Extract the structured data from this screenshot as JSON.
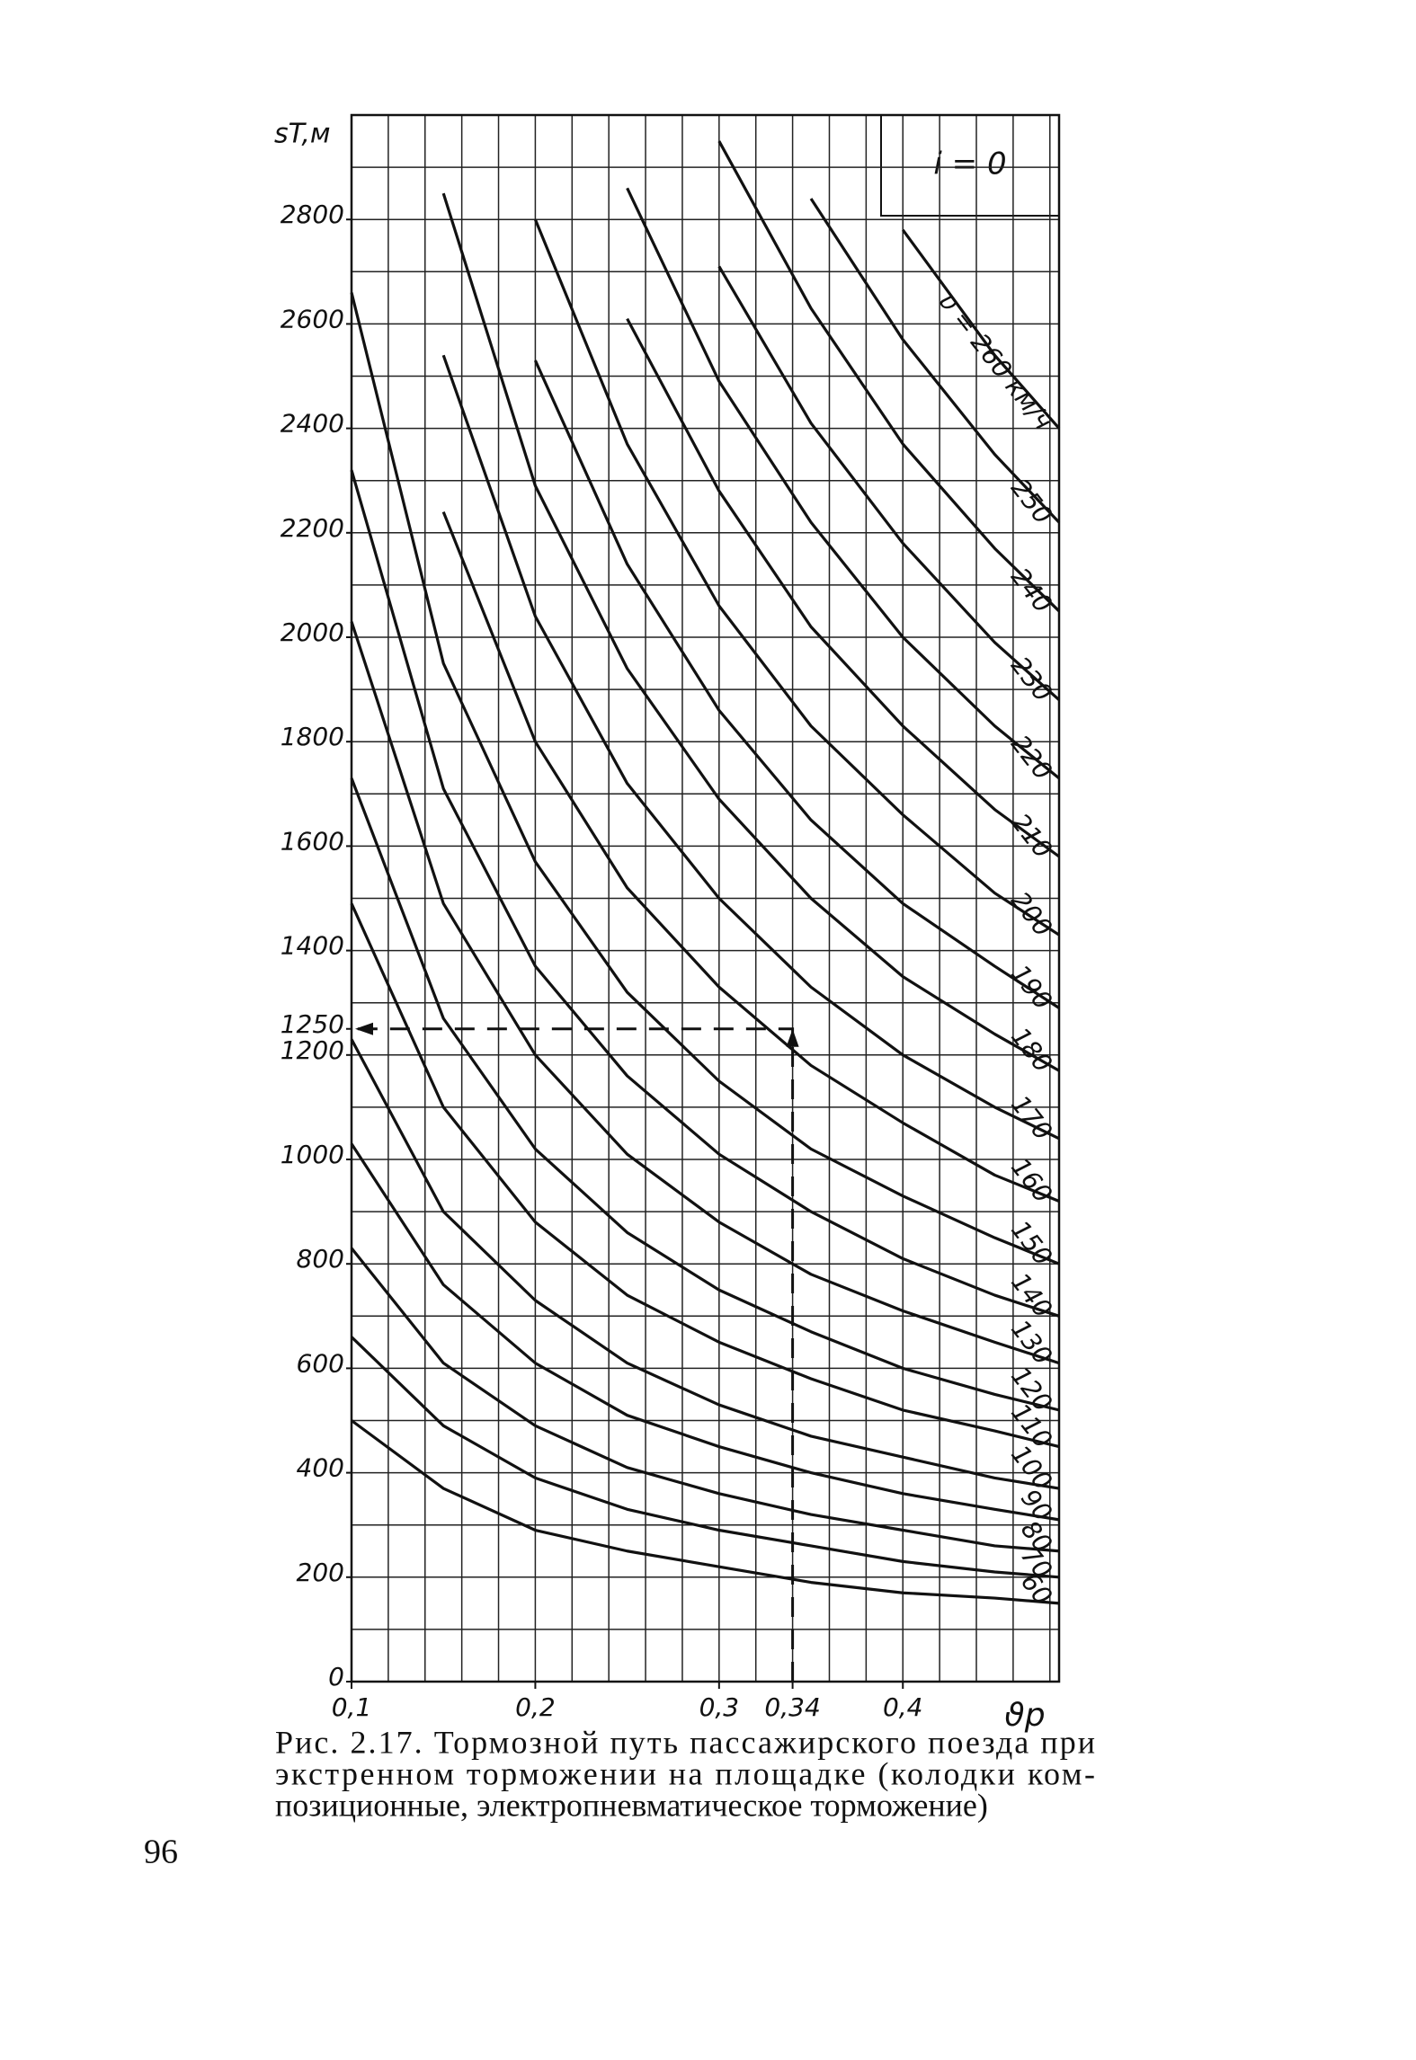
{
  "chart_data": {
    "type": "line",
    "y_label": "sT,м",
    "x_label": "ϑp",
    "annotation": "i = 0",
    "caption": [
      "Рис. 2.17. Тормозной путь пассажирского поезда при",
      "экстренном торможении на площадке (колодки ком-",
      "позиционные, электропневматическое торможение)"
    ],
    "page_number": "96",
    "x": [
      0.1,
      0.15,
      0.2,
      0.25,
      0.3,
      0.35,
      0.4,
      0.45,
      0.485
    ],
    "xlim": [
      0.1,
      0.485
    ],
    "ylim": [
      0,
      3000
    ],
    "xticks": [
      {
        "value": 0.1,
        "label": "0,1"
      },
      {
        "value": 0.2,
        "label": "0,2"
      },
      {
        "value": 0.3,
        "label": "0,3"
      },
      {
        "value": 0.34,
        "label": "0,34"
      },
      {
        "value": 0.4,
        "label": "0,4"
      }
    ],
    "yticks": [
      0,
      200,
      400,
      600,
      800,
      1000,
      1200,
      1250,
      1400,
      1600,
      1800,
      2000,
      2200,
      2400,
      2600,
      2800
    ],
    "xgrid": [
      0.12,
      0.14,
      0.16,
      0.18,
      0.2,
      0.22,
      0.24,
      0.26,
      0.28,
      0.3,
      0.32,
      0.34,
      0.36,
      0.38,
      0.4,
      0.42,
      0.44,
      0.46,
      0.48
    ],
    "ygrid": [
      100,
      200,
      300,
      400,
      500,
      600,
      700,
      800,
      900,
      1000,
      1100,
      1200,
      1300,
      1400,
      1500,
      1600,
      1700,
      1800,
      1900,
      2000,
      2100,
      2200,
      2300,
      2400,
      2500,
      2600,
      2700,
      2800,
      2900
    ],
    "guide": {
      "x": 0.34,
      "y": 1250
    },
    "color": "#111111",
    "series": [
      {
        "name": "60",
        "values": [
          500,
          370,
          290,
          250,
          220,
          190,
          170,
          160,
          150
        ]
      },
      {
        "name": "70",
        "values": [
          660,
          490,
          390,
          330,
          290,
          260,
          230,
          210,
          200
        ]
      },
      {
        "name": "80",
        "values": [
          830,
          610,
          490,
          410,
          360,
          320,
          290,
          260,
          250
        ]
      },
      {
        "name": "90",
        "values": [
          1030,
          760,
          610,
          510,
          450,
          400,
          360,
          330,
          310
        ]
      },
      {
        "name": "100",
        "values": [
          1230,
          900,
          730,
          610,
          530,
          470,
          430,
          390,
          370
        ]
      },
      {
        "name": "110",
        "values": [
          1490,
          1100,
          880,
          740,
          650,
          580,
          520,
          480,
          450
        ]
      },
      {
        "name": "120",
        "values": [
          1730,
          1270,
          1020,
          860,
          750,
          670,
          600,
          550,
          520
        ]
      },
      {
        "name": "130",
        "values": [
          2030,
          1490,
          1200,
          1010,
          880,
          780,
          710,
          650,
          610
        ]
      },
      {
        "name": "140",
        "values": [
          2320,
          1710,
          1370,
          1160,
          1010,
          900,
          810,
          740,
          700
        ]
      },
      {
        "name": "150",
        "values": [
          2660,
          1950,
          1570,
          1320,
          1150,
          1020,
          930,
          850,
          800
        ]
      },
      {
        "name": "160",
        "values": [
          null,
          2240,
          1800,
          1520,
          1330,
          1180,
          1070,
          970,
          920
        ]
      },
      {
        "name": "170",
        "values": [
          null,
          2540,
          2040,
          1720,
          1500,
          1330,
          1200,
          1100,
          1040
        ]
      },
      {
        "name": "180",
        "values": [
          null,
          2850,
          2290,
          1940,
          1690,
          1500,
          1350,
          1240,
          1170
        ]
      },
      {
        "name": "190",
        "values": [
          null,
          null,
          2530,
          2140,
          1860,
          1650,
          1490,
          1370,
          1290
        ]
      },
      {
        "name": "200",
        "values": [
          null,
          null,
          2800,
          2370,
          2060,
          1830,
          1660,
          1510,
          1430
        ]
      },
      {
        "name": "210",
        "values": [
          null,
          null,
          null,
          2610,
          2280,
          2020,
          1830,
          1670,
          1580
        ]
      },
      {
        "name": "220",
        "values": [
          null,
          null,
          null,
          2860,
          2490,
          2220,
          2000,
          1830,
          1730
        ]
      },
      {
        "name": "230",
        "values": [
          null,
          null,
          null,
          null,
          2710,
          2410,
          2180,
          1990,
          1880
        ]
      },
      {
        "name": "240",
        "values": [
          null,
          null,
          null,
          null,
          2950,
          2630,
          2370,
          2170,
          2050
        ]
      },
      {
        "name": "250",
        "values": [
          null,
          null,
          null,
          null,
          null,
          2840,
          2570,
          2350,
          2220
        ]
      },
      {
        "name": "υ = 260 км/ч",
        "values": [
          null,
          null,
          null,
          null,
          null,
          null,
          2780,
          2540,
          2400
        ]
      }
    ]
  }
}
